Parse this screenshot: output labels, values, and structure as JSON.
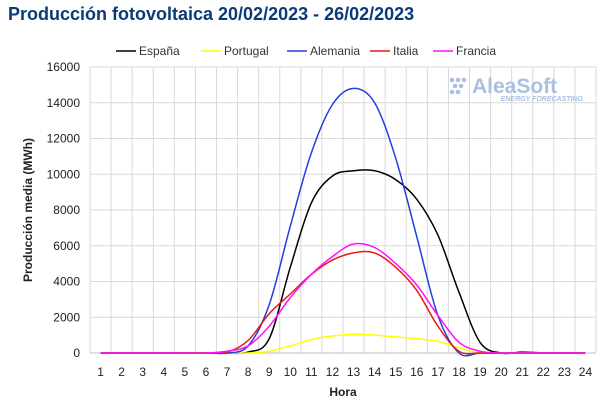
{
  "chart_data": {
    "type": "line",
    "title": "Producción fotovoltaica 20/02/2023 - 26/02/2023",
    "xlabel": "Hora",
    "ylabel": "Producción media (MWh)",
    "x": [
      1,
      2,
      3,
      4,
      5,
      6,
      7,
      8,
      9,
      10,
      11,
      12,
      13,
      14,
      15,
      16,
      17,
      18,
      19,
      20,
      21,
      22,
      23,
      24
    ],
    "xlim": [
      1,
      24
    ],
    "ylim": [
      0,
      16000
    ],
    "yticks": [
      0,
      2000,
      4000,
      6000,
      8000,
      10000,
      12000,
      14000,
      16000
    ],
    "grid": true,
    "legend": "top",
    "series": [
      {
        "name": "España",
        "color": "#000000",
        "values": [
          0,
          0,
          0,
          0,
          0,
          0,
          0,
          50,
          800,
          4800,
          8400,
          9900,
          10200,
          10200,
          9700,
          8600,
          6600,
          3400,
          600,
          0,
          50,
          0,
          0,
          0
        ]
      },
      {
        "name": "Portugal",
        "color": "#ffff00",
        "values": [
          0,
          0,
          0,
          0,
          0,
          0,
          0,
          0,
          100,
          400,
          750,
          950,
          1050,
          1000,
          900,
          800,
          650,
          300,
          0,
          0,
          0,
          0,
          0,
          0
        ]
      },
      {
        "name": "Alemania",
        "color": "#1f3fe0",
        "values": [
          0,
          0,
          0,
          0,
          0,
          0,
          0,
          400,
          2700,
          7100,
          11200,
          13900,
          14800,
          14000,
          10900,
          6500,
          2100,
          0,
          0,
          0,
          0,
          0,
          0,
          0
        ]
      },
      {
        "name": "Italia",
        "color": "#e81818",
        "values": [
          0,
          0,
          0,
          0,
          0,
          0,
          50,
          700,
          2200,
          3300,
          4400,
          5200,
          5600,
          5600,
          4800,
          3500,
          1500,
          100,
          0,
          0,
          0,
          0,
          0,
          0
        ]
      },
      {
        "name": "Francia",
        "color": "#ff10ff",
        "values": [
          0,
          0,
          0,
          0,
          0,
          0,
          100,
          400,
          1500,
          3100,
          4400,
          5400,
          6100,
          5900,
          5000,
          3800,
          2100,
          600,
          100,
          0,
          0,
          0,
          0,
          0
        ]
      }
    ]
  },
  "watermark": {
    "brand": "AleaSoft",
    "tagline": "ENERGY FORECASTING"
  }
}
